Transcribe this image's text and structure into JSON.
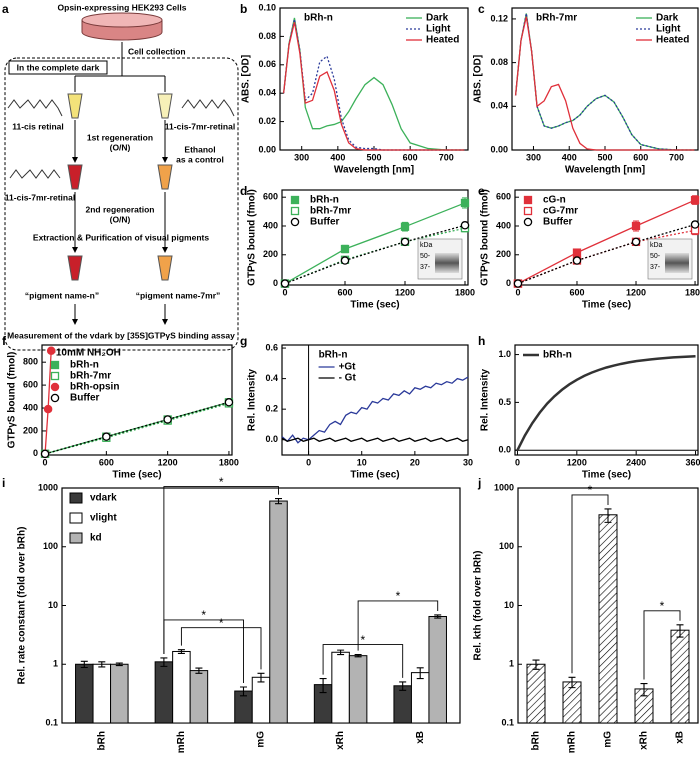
{
  "diagram": {
    "panel_label": "a",
    "title": "Opsin-expressing HEK293 Cells",
    "step_collection": "Cell collection",
    "dark_label": "In the complete dark",
    "left_chromophore": "11-cis retinal",
    "right_chromophore": "11-cis-7mr-retinal",
    "step_first": "1st regeneration",
    "step_first_note": "(O/N)",
    "control_line1": "Ethanol",
    "control_line2": "as a control",
    "second_chromophore": "11-cis-7mr-retinal",
    "step_second": "2nd regeneration",
    "step_second_note": "(O/N)",
    "step_extraction": "Extraction & Purification of visual pigments",
    "left_product": "“pigment name-n”",
    "right_product": "“pigment name-7mr”",
    "measurement": "Measurement of the vdark by [35S]GTPγS binding assay"
  },
  "chart_data": [
    {
      "type": "line",
      "panel_label": "b",
      "title": "bRh-n",
      "x_label": "Wavelength [nm]",
      "y_label": "ABS. [OD]",
      "xlim": [
        240,
        760
      ],
      "ylim": [
        0,
        0.1
      ],
      "xticks": [
        300,
        400,
        500,
        600,
        700
      ],
      "yticks": [
        {
          "value": 0,
          "label": "0.00"
        },
        {
          "value": 0.02,
          "label": "0.02"
        },
        {
          "value": 0.04,
          "label": "0.04"
        },
        {
          "value": 0.06,
          "label": "0.06"
        },
        {
          "value": 0.08,
          "label": "0.08"
        },
        {
          "value": 0.1,
          "label": "0.10"
        }
      ],
      "legend": "upper right",
      "x": [
        250,
        265,
        280,
        295,
        310,
        330,
        350,
        370,
        390,
        410,
        430,
        450,
        475,
        500,
        525,
        550,
        575,
        600,
        650,
        700,
        750
      ],
      "series": [
        {
          "name": "Dark",
          "color": "#3cb15a",
          "line_style": "solid",
          "values": [
            0.04,
            0.075,
            0.093,
            0.07,
            0.03,
            0.015,
            0.015,
            0.017,
            0.018,
            0.02,
            0.027,
            0.036,
            0.046,
            0.051,
            0.046,
            0.032,
            0.015,
            0.005,
            0.001,
            0,
            0
          ]
        },
        {
          "name": "Light",
          "color": "#2b3a9a",
          "line_style": "dotted",
          "values": [
            0.04,
            0.075,
            0.092,
            0.07,
            0.035,
            0.04,
            0.062,
            0.066,
            0.05,
            0.022,
            0.007,
            0.002,
            0.001,
            0.001,
            0,
            0,
            0,
            0,
            0,
            0,
            0
          ]
        },
        {
          "name": "Heated",
          "color": "#e0303a",
          "line_style": "solid",
          "values": [
            0.04,
            0.074,
            0.09,
            0.068,
            0.033,
            0.035,
            0.052,
            0.055,
            0.042,
            0.018,
            0.005,
            0.001,
            0,
            0,
            0,
            0,
            0,
            0,
            0,
            0,
            0
          ]
        }
      ]
    },
    {
      "type": "line",
      "panel_label": "c",
      "title": "bRh-7mr",
      "x_label": "Wavelength [nm]",
      "y_label": "ABS. [OD]",
      "xlim": [
        240,
        760
      ],
      "ylim": [
        0,
        0.13
      ],
      "xticks": [
        300,
        400,
        500,
        600,
        700
      ],
      "yticks": [
        {
          "value": 0,
          "label": "0.00"
        },
        {
          "value": 0.04,
          "label": "0.04"
        },
        {
          "value": 0.08,
          "label": "0.08"
        },
        {
          "value": 0.12,
          "label": "0.12"
        }
      ],
      "legend": "upper right",
      "x": [
        250,
        265,
        280,
        295,
        310,
        330,
        350,
        370,
        390,
        410,
        430,
        450,
        475,
        500,
        525,
        550,
        575,
        600,
        650,
        700,
        750
      ],
      "series": [
        {
          "name": "Dark",
          "color": "#3cb15a",
          "line_style": "solid",
          "values": [
            0.05,
            0.1,
            0.125,
            0.09,
            0.04,
            0.022,
            0.02,
            0.022,
            0.025,
            0.027,
            0.032,
            0.04,
            0.047,
            0.05,
            0.044,
            0.03,
            0.014,
            0.005,
            0.001,
            0,
            0
          ]
        },
        {
          "name": "Light",
          "color": "#2b3a9a",
          "line_style": "dotted",
          "values": [
            0.05,
            0.1,
            0.125,
            0.09,
            0.04,
            0.022,
            0.02,
            0.022,
            0.025,
            0.027,
            0.032,
            0.04,
            0.047,
            0.05,
            0.044,
            0.03,
            0.014,
            0.005,
            0.001,
            0,
            0
          ]
        },
        {
          "name": "Heated",
          "color": "#e0303a",
          "line_style": "solid",
          "values": [
            0.05,
            0.1,
            0.122,
            0.09,
            0.04,
            0.045,
            0.058,
            0.06,
            0.045,
            0.02,
            0.006,
            0.001,
            0,
            0,
            0,
            0,
            0,
            0,
            0,
            0,
            0
          ]
        }
      ]
    },
    {
      "type": "scatter",
      "panel_label": "d",
      "x_label": "Time (sec)",
      "y_label": "GTPγS bound (fmol)",
      "xlim": [
        -30,
        1830
      ],
      "ylim": [
        -10,
        650
      ],
      "xticks": [
        0,
        600,
        1200,
        1800
      ],
      "yticks": [
        0,
        200,
        400,
        600
      ],
      "legend": "upper left",
      "inset_labels": [
        "kDa",
        "50-",
        "37-"
      ],
      "x": [
        0,
        600,
        1200,
        1800
      ],
      "series": [
        {
          "name": "bRh-n",
          "color": "#3cb15a",
          "marker": "square-filled",
          "line_style": "solid",
          "values": [
            0,
            240,
            395,
            560
          ],
          "errors": [
            5,
            25,
            30,
            35
          ]
        },
        {
          "name": "bRh-7mr",
          "color": "#3cb15a",
          "marker": "square-open",
          "line_style": "dotted",
          "values": [
            0,
            165,
            290,
            385
          ],
          "errors": [
            5,
            15,
            15,
            25
          ]
        },
        {
          "name": "Buffer",
          "color": "#000000",
          "marker": "circle-open",
          "line_style": "dotted",
          "values": [
            0,
            160,
            290,
            405
          ],
          "errors": [
            5,
            15,
            15,
            20
          ]
        }
      ]
    },
    {
      "type": "scatter",
      "panel_label": "e",
      "x_label": "Time (sec)",
      "y_label": "GTPγS bound (fmol)",
      "xlim": [
        -30,
        1830
      ],
      "ylim": [
        -10,
        650
      ],
      "xticks": [
        0,
        600,
        1200,
        1800
      ],
      "yticks": [
        0,
        200,
        400,
        600
      ],
      "legend": "upper left",
      "inset_labels": [
        "kDa",
        "50-",
        "37-"
      ],
      "x": [
        0,
        600,
        1200,
        1800
      ],
      "series": [
        {
          "name": "cG-n",
          "color": "#e0303a",
          "marker": "square-filled",
          "line_style": "solid",
          "values": [
            0,
            215,
            400,
            580
          ],
          "errors": [
            5,
            20,
            35,
            30
          ]
        },
        {
          "name": "cG-7mr",
          "color": "#e0303a",
          "marker": "square-open",
          "line_style": "dotted",
          "values": [
            0,
            160,
            290,
            370
          ],
          "errors": [
            5,
            15,
            15,
            30
          ]
        },
        {
          "name": "Buffer",
          "color": "#000000",
          "marker": "circle-open",
          "line_style": "dotted",
          "values": [
            0,
            160,
            290,
            410
          ],
          "errors": [
            5,
            15,
            15,
            20
          ]
        }
      ]
    },
    {
      "type": "scatter",
      "panel_label": "f",
      "x_label": "Time (sec)",
      "y_label": "GTPγS bound (fmol)",
      "legend_title": "+10mM NH₂OH",
      "xlim": [
        -30,
        1830
      ],
      "ylim": [
        -10,
        950
      ],
      "xticks": [
        0,
        600,
        1200,
        1800
      ],
      "yticks": [
        0,
        200,
        400,
        600,
        800
      ],
      "legend": "upper left",
      "x": [
        0,
        600,
        1200,
        1800
      ],
      "series": [
        {
          "name": "bRh-n",
          "color": "#3cb15a",
          "marker": "square-filled",
          "line_style": "solid",
          "values": [
            0,
            150,
            300,
            450
          ],
          "errors": [
            5,
            20,
            25,
            25
          ]
        },
        {
          "name": "bRh-7mr",
          "color": "#3cb15a",
          "marker": "square-open",
          "line_style": "dotted",
          "values": [
            0,
            140,
            290,
            440
          ],
          "errors": [
            5,
            20,
            25,
            25
          ]
        },
        {
          "name": "bRh-opsin",
          "color": "#e0303a",
          "marker": "circle-filled",
          "line_style": "solid",
          "x": [
            0,
            30,
            60
          ],
          "values": [
            0,
            390,
            900
          ]
        },
        {
          "name": "Buffer",
          "color": "#000000",
          "marker": "circle-open",
          "line_style": "dotted",
          "values": [
            0,
            150,
            300,
            450
          ],
          "errors": [
            5,
            20,
            20,
            25
          ]
        }
      ]
    },
    {
      "type": "line",
      "panel_label": "g",
      "legend_title": "bRh-n",
      "x_label": "Time (sec)",
      "y_label": "Rel. Intensity",
      "xlim": [
        -5,
        30
      ],
      "ylim": [
        -0.1,
        0.62
      ],
      "xticks": [
        0,
        10,
        20,
        30
      ],
      "yticks": [
        {
          "value": 0,
          "label": "0.0"
        },
        {
          "value": 0.2,
          "label": "0.2"
        },
        {
          "value": 0.4,
          "label": "0.4"
        },
        {
          "value": 0.6,
          "label": "0.6"
        }
      ],
      "legend": "upper center",
      "vline": 0,
      "x": [
        -5,
        -4,
        -3,
        -2,
        -1,
        0,
        1,
        2,
        3,
        4,
        5,
        6,
        7,
        8,
        9,
        10,
        11,
        12,
        13,
        14,
        15,
        16,
        17,
        18,
        19,
        20,
        21,
        22,
        23,
        24,
        25,
        26,
        27,
        28,
        29,
        30
      ],
      "series": [
        {
          "name": "+Gt",
          "color": "#2b3a9a",
          "line_style": "solid",
          "values": [
            0.02,
            -0.01,
            0.03,
            -0.02,
            0.01,
            0,
            0.03,
            0.06,
            0.05,
            0.1,
            0.12,
            0.1,
            0.16,
            0.18,
            0.17,
            0.21,
            0.2,
            0.25,
            0.24,
            0.27,
            0.26,
            0.3,
            0.29,
            0.32,
            0.3,
            0.34,
            0.33,
            0.35,
            0.34,
            0.37,
            0.36,
            0.38,
            0.37,
            0.4,
            0.39,
            0.41
          ]
        },
        {
          "name": "- Gt",
          "color": "#000000",
          "line_style": "solid",
          "values": [
            0.01,
            -0.01,
            0,
            0.01,
            -0.01,
            0,
            0.01,
            -0.01,
            0,
            0.01,
            -0.01,
            0,
            0.01,
            -0.01,
            0,
            0.01,
            -0.01,
            0,
            0.01,
            -0.01,
            0,
            0.01,
            -0.01,
            0,
            0.01,
            -0.01,
            0,
            0.01,
            -0.01,
            0,
            0.01,
            -0.01,
            0,
            0.01,
            -0.01,
            0
          ]
        }
      ]
    },
    {
      "type": "line",
      "panel_label": "h",
      "x_label": "Time (sec)",
      "y_label": "Rel. Intensity",
      "xlim": [
        -50,
        3650
      ],
      "ylim": [
        -0.05,
        1.1
      ],
      "xticks": [
        0,
        1200,
        2400,
        3600
      ],
      "yticks": [
        {
          "value": 0,
          "label": "0.0"
        },
        {
          "value": 0.5,
          "label": "0.5"
        },
        {
          "value": 1,
          "label": "1.0"
        }
      ],
      "legend": "upper left",
      "hline": 0,
      "x": [
        0,
        150,
        300,
        450,
        600,
        750,
        900,
        1050,
        1200,
        1350,
        1500,
        1650,
        1800,
        1950,
        2100,
        2250,
        2400,
        2550,
        2700,
        2850,
        3000,
        3150,
        3300,
        3450,
        3600
      ],
      "series": [
        {
          "name": "bRh-n",
          "color": "#333333",
          "line_style": "thick",
          "values": [
            0,
            0.154,
            0.283,
            0.393,
            0.487,
            0.565,
            0.632,
            0.689,
            0.736,
            0.777,
            0.811,
            0.84,
            0.865,
            0.885,
            0.903,
            0.918,
            0.931,
            0.941,
            0.95,
            0.958,
            0.964,
            0.97,
            0.974,
            0.978,
            0.982
          ]
        }
      ]
    },
    {
      "type": "bar",
      "panel_label": "i",
      "log_y": true,
      "y_label": "Rel. rate constant (fold over bRh)",
      "ylim": [
        0.1,
        1000
      ],
      "yticks": [
        0.1,
        1,
        10,
        100,
        1000
      ],
      "legend": "upper left",
      "categories": [
        "bRh",
        "mRh",
        "mG",
        "xRh",
        "xB"
      ],
      "significance_labels": [
        "*",
        "*",
        "*",
        "*",
        "*"
      ],
      "series": [
        {
          "name": "vdark",
          "color": "#3a3a3a",
          "values": [
            1.0,
            1.1,
            0.35,
            0.45,
            0.43
          ],
          "errors": [
            0.12,
            0.18,
            0.06,
            0.12,
            0.07
          ]
        },
        {
          "name": "vlight",
          "color": "#ffffff",
          "values": [
            1.0,
            1.65,
            0.6,
            1.6,
            0.72
          ],
          "errors": [
            0.1,
            0.12,
            0.1,
            0.14,
            0.15
          ]
        },
        {
          "name": "kd",
          "color": "#b3b3b3",
          "values": [
            1.0,
            0.78,
            600,
            1.4,
            6.5
          ],
          "errors": [
            0.05,
            0.08,
            60,
            0.06,
            0.4
          ]
        }
      ]
    },
    {
      "type": "bar",
      "panel_label": "j",
      "log_y": true,
      "hatch": true,
      "y_label": "Rel. kth (fold over bRh)",
      "ylim": [
        0.1,
        1000
      ],
      "yticks": [
        0.1,
        1,
        10,
        100,
        1000
      ],
      "categories": [
        "bRh",
        "mRh",
        "mG",
        "xRh",
        "xB"
      ],
      "significance_labels": [
        "*",
        "*"
      ],
      "series": [
        {
          "color": "#ffffff",
          "values": [
            1.0,
            0.5,
            350,
            0.38,
            3.8
          ],
          "errors": [
            0.18,
            0.1,
            90,
            0.09,
            0.9
          ]
        }
      ]
    }
  ]
}
